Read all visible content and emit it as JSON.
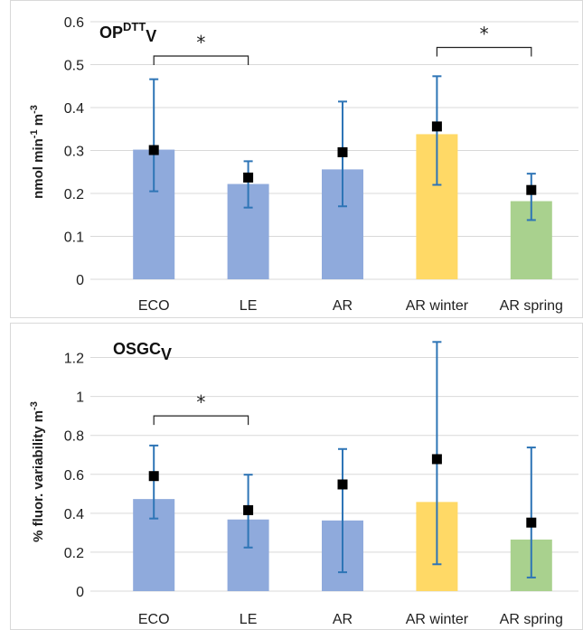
{
  "chart_data": [
    {
      "type": "bar",
      "title": {
        "main": "OP",
        "sup": "DTT",
        "sub": "V"
      },
      "ylabel": {
        "main": "nmol min",
        "sup1": "-1",
        "mid": " m",
        "sup2": "-3"
      },
      "categories": [
        "ECO",
        "LE",
        "AR",
        "AR winter",
        "AR spring"
      ],
      "yticks": [
        "0",
        "0.1",
        "0.2",
        "0.3",
        "0.4",
        "0.5",
        "0.6"
      ],
      "ylim": [
        0,
        0.6
      ],
      "bar_values": [
        0.302,
        0.222,
        0.256,
        0.338,
        0.182
      ],
      "marker_values": [
        0.301,
        0.237,
        0.296,
        0.356,
        0.208
      ],
      "error_low": [
        0.205,
        0.167,
        0.17,
        0.22,
        0.138
      ],
      "error_high": [
        0.466,
        0.275,
        0.414,
        0.473,
        0.246
      ],
      "bar_colors": [
        "#8faadc",
        "#8faadc",
        "#8faadc",
        "#ffd966",
        "#a9d18e"
      ],
      "error_color": "#2e75b6",
      "marker_color": "#000000",
      "grid": true,
      "significance": [
        {
          "from": 0,
          "to": 1,
          "label": "*",
          "level": 0.52
        },
        {
          "from": 3,
          "to": 4,
          "label": "*",
          "level": 0.54
        }
      ]
    },
    {
      "type": "bar",
      "title": {
        "main": "OSGC",
        "sup": "",
        "sub": "V"
      },
      "ylabel": {
        "main": "% fluor. variability m",
        "sup1": "",
        "mid": "",
        "sup2": "-3"
      },
      "categories": [
        "ECO",
        "LE",
        "AR",
        "AR winter",
        "AR spring"
      ],
      "yticks": [
        "0",
        "0.2",
        "0.4",
        "0.6",
        "0.8",
        "1",
        "1.2"
      ],
      "ylim": [
        0,
        1.3
      ],
      "bar_values": [
        0.473,
        0.368,
        0.363,
        0.458,
        0.265
      ],
      "marker_values": [
        0.591,
        0.416,
        0.548,
        0.678,
        0.352
      ],
      "error_low": [
        0.373,
        0.224,
        0.097,
        0.138,
        0.07
      ],
      "error_high": [
        0.748,
        0.598,
        0.73,
        1.28,
        0.738
      ],
      "bar_colors": [
        "#8faadc",
        "#8faadc",
        "#8faadc",
        "#ffd966",
        "#a9d18e"
      ],
      "error_color": "#2e75b6",
      "marker_color": "#000000",
      "grid": true,
      "significance": [
        {
          "from": 0,
          "to": 1,
          "label": "*",
          "level": 0.9
        }
      ]
    }
  ]
}
